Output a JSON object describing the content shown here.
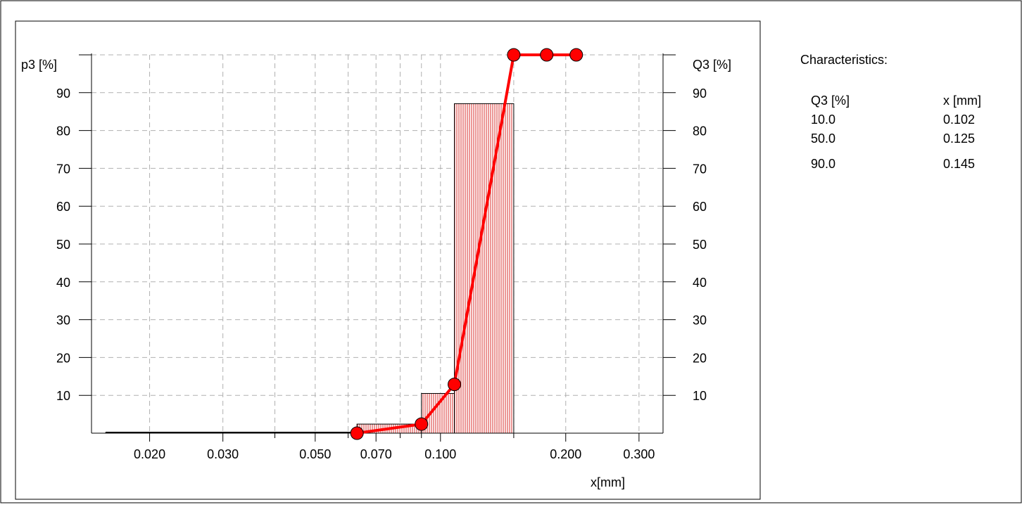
{
  "chart_data": {
    "type": "bar",
    "left_axis_label": "p3 [%]",
    "right_axis_label": "Q3 [%]",
    "xlabel": "x[mm]",
    "x_scale": "log",
    "xlim": [
      0.0145,
      0.34
    ],
    "ylim": [
      0,
      100
    ],
    "grid": true,
    "y_ticks": [
      "10",
      "20",
      "30",
      "40",
      "50",
      "60",
      "70",
      "80",
      "90"
    ],
    "x_ticks": [
      "0.020",
      "0.030",
      "0.050",
      "0.070",
      "0.100",
      "0.200",
      "0.300"
    ],
    "histogram_p3": [
      {
        "x_lo": 0.0145,
        "x_hi": 0.063,
        "value": 0.1
      },
      {
        "x_lo": 0.063,
        "x_hi": 0.09,
        "value": 2.4
      },
      {
        "x_lo": 0.09,
        "x_hi": 0.108,
        "value": 10.5
      },
      {
        "x_lo": 0.108,
        "x_hi": 0.15,
        "value": 87.1
      },
      {
        "x_lo": 0.15,
        "x_hi": 0.32,
        "value": 0
      }
    ],
    "cumulative_Q3": {
      "x": [
        0.063,
        0.09,
        0.108,
        0.15,
        0.18,
        0.212
      ],
      "y": [
        0.0,
        2.4,
        12.9,
        100.0,
        100.0,
        100.0
      ]
    },
    "colors": {
      "q3_line": "#ff0000",
      "hist_fill": "#d9302f",
      "grid": "#b0b0b0"
    }
  },
  "characteristics": {
    "title": "Characteristics:",
    "col_q3": "Q3 [%]",
    "col_x": "x [mm]",
    "rows": [
      {
        "q3": "10.0",
        "x": "0.102"
      },
      {
        "q3": "50.0",
        "x": "0.125"
      },
      {
        "q3": "90.0",
        "x": "0.145"
      }
    ]
  }
}
